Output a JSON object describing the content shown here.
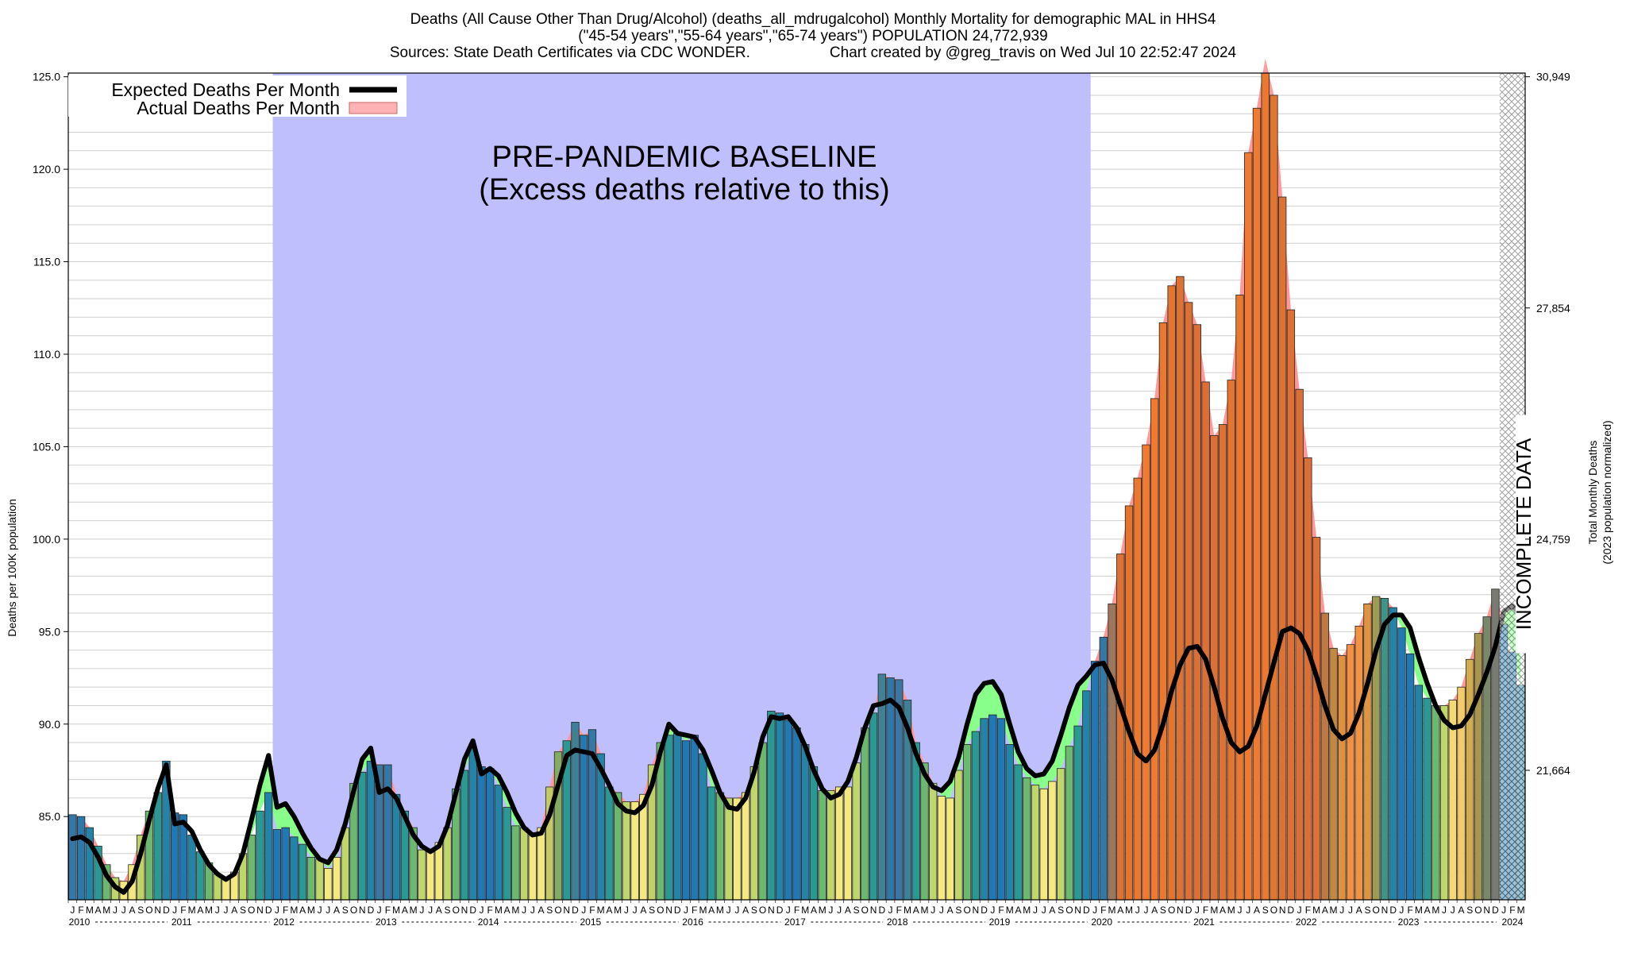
{
  "header": {
    "title": "Deaths (All Cause Other Than Drug/Alcohol) (deaths_all_mdrugalcohol) Monthly Mortality for demographic MAL in HHS4",
    "subtitle": "(\"45-54 years\",\"55-64 years\",\"65-74 years\") POPULATION 24,772,939",
    "sources": "Sources: State Death Certificates via CDC WONDER.",
    "credit": "Chart created by @greg_travis on Wed Jul 10 22:52:47 2024"
  },
  "annotations": {
    "baseline_line1": "PRE-PANDEMIC BASELINE",
    "baseline_line2": "(Excess deaths relative to this)",
    "incomplete": "INCOMPLETE DATA"
  },
  "legend": {
    "expected": "Expected Deaths Per Month",
    "actual": "Actual Deaths Per Month",
    "placement": "top-left"
  },
  "colors": {
    "baseline_band": "#bfbffe",
    "excess_fill": "#ff9999",
    "deficit_fill": "#88ff88",
    "expected_line": "#000000"
  },
  "chart_data": {
    "type": "bar",
    "ylabel_left": "Deaths per 100K population",
    "ylabel_right_1": "Total Monthly Deaths",
    "ylabel_right_2": "(2023 population normalized)",
    "ylim": [
      80.5,
      125.2
    ],
    "yticks_left": [
      "85.0",
      "90.0",
      "95.0",
      "100.0",
      "105.0",
      "110.0",
      "115.0",
      "120.0",
      "125.0"
    ],
    "right_ticks": [
      {
        "label": "21,664",
        "value": 87.5
      },
      {
        "label": "24,759",
        "value": 100.0
      },
      {
        "label": "27,854",
        "value": 112.5
      },
      {
        "label": "30,949",
        "value": 125.0
      }
    ],
    "month_letters": [
      "J",
      "F",
      "M",
      "A",
      "M",
      "J",
      "J",
      "A",
      "S",
      "O",
      "N",
      "D"
    ],
    "start": "2010-01",
    "years": [
      "2010",
      "2011",
      "2012",
      "2013",
      "2014",
      "2015",
      "2016",
      "2017",
      "2018",
      "2019",
      "2020",
      "2021",
      "2022",
      "2023",
      "2024"
    ],
    "baseline_period": [
      "2012-01",
      "2019-12"
    ],
    "incomplete_period": [
      "2024-01",
      "2024-03"
    ],
    "actual": [
      85.1,
      85.0,
      84.4,
      83.4,
      82.4,
      81.7,
      81.5,
      82.4,
      84.0,
      85.3,
      86.3,
      88.0,
      85.2,
      85.1,
      84.0,
      83.1,
      82.5,
      81.9,
      81.7,
      82.0,
      83.0,
      84.0,
      85.3,
      86.3,
      84.3,
      84.4,
      83.9,
      83.5,
      82.8,
      82.7,
      82.2,
      82.8,
      84.4,
      86.8,
      87.4,
      88.0,
      87.8,
      87.8,
      86.2,
      85.3,
      84.4,
      83.2,
      83.1,
      83.6,
      84.4,
      86.5,
      87.5,
      88.7,
      87.7,
      87.6,
      86.7,
      85.5,
      84.5,
      84.4,
      84.0,
      84.4,
      86.6,
      88.5,
      89.1,
      90.1,
      89.4,
      89.7,
      88.4,
      86.6,
      86.3,
      85.8,
      85.8,
      86.2,
      87.8,
      89.0,
      89.4,
      89.5,
      89.1,
      89.4,
      88.4,
      86.6,
      86.3,
      86.0,
      86.0,
      86.3,
      87.7,
      89.0,
      90.7,
      90.6,
      90.2,
      89.8,
      88.9,
      87.7,
      86.4,
      86.4,
      86.6,
      86.6,
      87.9,
      89.8,
      90.6,
      92.7,
      92.5,
      92.4,
      91.3,
      89.0,
      87.9,
      86.8,
      86.1,
      86.0,
      87.5,
      88.9,
      89.6,
      90.3,
      90.5,
      90.3,
      88.9,
      87.8,
      87.1,
      86.7,
      86.5,
      86.9,
      87.6,
      88.8,
      89.9,
      91.8,
      93.4,
      94.7,
      96.5,
      99.2,
      101.8,
      103.3,
      105.1,
      107.6,
      111.7,
      113.7,
      114.2,
      112.8,
      111.6,
      108.5,
      105.6,
      106.2,
      108.6,
      113.2,
      120.9,
      123.3,
      126.0,
      124.0,
      118.5,
      112.4,
      108.1,
      104.4,
      100.1,
      96.0,
      94.1,
      93.7,
      94.3,
      95.3,
      96.5,
      96.9,
      96.8,
      96.3,
      95.2,
      93.8,
      92.1,
      91.4,
      91.0,
      91.0,
      91.3,
      92.0,
      93.5,
      94.9,
      95.8,
      97.3,
      95.4,
      93.9,
      92.1
    ],
    "expected": [
      83.8,
      83.9,
      83.6,
      82.8,
      81.8,
      81.2,
      80.9,
      81.5,
      83.0,
      84.8,
      86.5,
      87.8,
      84.6,
      84.7,
      84.2,
      83.2,
      82.4,
      81.9,
      81.6,
      81.9,
      83.0,
      84.8,
      86.7,
      88.3,
      85.5,
      85.7,
      85.0,
      84.1,
      83.3,
      82.7,
      82.5,
      83.2,
      84.6,
      86.4,
      88.1,
      88.7,
      86.3,
      86.5,
      86.0,
      85.0,
      84.0,
      83.4,
      83.1,
      83.4,
      84.5,
      86.3,
      88.1,
      89.1,
      87.3,
      87.6,
      87.2,
      86.3,
      85.2,
      84.4,
      84.0,
      84.1,
      85.1,
      86.7,
      88.3,
      88.6,
      88.5,
      88.4,
      87.6,
      86.7,
      85.7,
      85.3,
      85.2,
      85.6,
      86.7,
      88.5,
      90.0,
      89.5,
      89.4,
      89.3,
      88.6,
      87.5,
      86.3,
      85.5,
      85.4,
      86.0,
      87.4,
      89.3,
      90.4,
      90.3,
      90.4,
      89.8,
      88.8,
      87.5,
      86.5,
      86.0,
      86.2,
      86.9,
      88.2,
      89.8,
      91.0,
      91.1,
      91.3,
      90.9,
      89.8,
      88.4,
      87.3,
      86.6,
      86.4,
      86.9,
      88.2,
      90.0,
      91.6,
      92.2,
      92.3,
      91.6,
      90.0,
      88.5,
      87.6,
      87.2,
      87.3,
      88.0,
      89.4,
      90.9,
      92.1,
      92.6,
      93.2,
      93.3,
      92.4,
      91.0,
      89.6,
      88.4,
      88.0,
      88.6,
      90.0,
      91.8,
      93.2,
      94.1,
      94.2,
      93.5,
      92.0,
      90.3,
      89.0,
      88.5,
      88.8,
      89.9,
      91.6,
      93.3,
      95.0,
      95.2,
      94.9,
      94.0,
      92.6,
      91.0,
      89.7,
      89.2,
      89.5,
      90.6,
      92.2,
      94.0,
      95.4,
      95.9,
      95.9,
      95.2,
      93.6,
      92.2,
      91.0,
      90.2,
      89.8,
      89.9,
      90.5,
      91.6,
      92.8,
      94.2,
      96.1,
      96.4,
      95.9
    ]
  }
}
